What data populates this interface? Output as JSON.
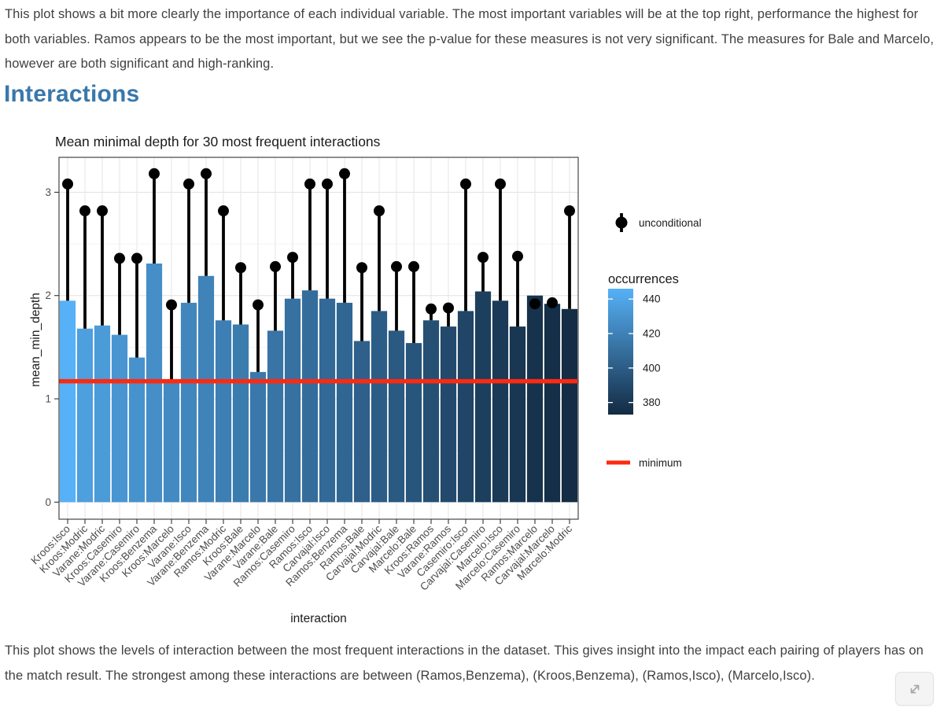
{
  "page": {
    "paragraph_top": "This plot shows a bit more clearly the importance of each individual variable. The most important variables will be at the top right, performance the highest for both variables. Ramos appears to be the most important, but we see the p-value for these measures is not very significant. The measures for Bale and Marcelo, however are both significant and high-ranking.",
    "heading": "Interactions",
    "paragraph_bottom": "This plot shows the levels of interaction between the most frequent interactions in the dataset. This gives insight into the impact each pairing of players has on the match result. The strongest among these interactions are between (Ramos,Benzema), (Kroos,Benzema), (Ramos,Isco), (Marcelo,Isco)."
  },
  "chart_data": {
    "type": "bar",
    "title": "Mean minimal depth for 30 most frequent interactions",
    "xlabel": "interaction",
    "ylabel": "mean_min_depth",
    "ylim": [
      0,
      3.35
    ],
    "yticks": [
      0,
      1,
      2,
      3
    ],
    "grid": true,
    "minimum_line": 1.17,
    "categories": [
      "Kroos:Isco",
      "Kroos:Modric",
      "Varane:Modric",
      "Kroos:Casemiro",
      "Varane:Casemiro",
      "Kroos:Benzema",
      "Kroos:Marcelo",
      "Varane:Isco",
      "Varane:Benzema",
      "Ramos:Modric",
      "Kroos:Bale",
      "Varane:Marcelo",
      "Varane:Bale",
      "Ramos:Casemiro",
      "Ramos:Isco",
      "Carvajal:Isco",
      "Ramos:Benzema",
      "Ramos:Bale",
      "Carvajal:Modric",
      "Carvajal:Bale",
      "Marcelo:Bale",
      "Kroos:Ramos",
      "Varane:Ramos",
      "Casemiro:Isco",
      "Carvajal:Casemiro",
      "Marcelo:Isco",
      "Marcelo:Casemiro",
      "Ramos:Marcelo",
      "Carvajal:Marcelo",
      "Marcelo:Modric"
    ],
    "series": [
      {
        "name": "mean_min_depth (bars)",
        "values": [
          1.95,
          1.68,
          1.71,
          1.62,
          1.4,
          2.31,
          1.17,
          1.93,
          2.19,
          1.76,
          1.72,
          1.26,
          1.66,
          1.97,
          2.05,
          1.97,
          1.93,
          1.56,
          1.85,
          1.66,
          1.54,
          1.76,
          1.7,
          1.85,
          2.04,
          1.95,
          1.7,
          2.0,
          1.92,
          1.87
        ]
      },
      {
        "name": "unconditional (dots)",
        "values": [
          3.08,
          2.82,
          2.82,
          2.36,
          2.36,
          3.18,
          1.91,
          3.08,
          3.18,
          2.82,
          2.27,
          1.91,
          2.28,
          2.37,
          3.08,
          3.08,
          3.18,
          2.27,
          2.82,
          2.28,
          2.28,
          1.87,
          1.88,
          3.08,
          2.37,
          3.08,
          2.38,
          1.92,
          1.93,
          2.82
        ]
      },
      {
        "name": "occurrences (color, estimated)",
        "values": [
          446,
          436,
          434,
          431,
          429,
          427,
          425,
          423,
          421,
          419,
          417,
          415,
          413,
          411,
          409,
          407,
          405,
          402,
          400,
          398,
          396,
          393,
          390,
          387,
          384,
          381,
          379,
          377,
          375,
          374
        ]
      }
    ],
    "legend": {
      "position": "right",
      "point_label": "unconditional",
      "gradient_title": "occurrences",
      "gradient_ticks": [
        440,
        420,
        400,
        380
      ],
      "gradient_domain": [
        373,
        446
      ],
      "line_label": "minimum"
    },
    "colors": {
      "bar_low": "#132B43",
      "bar_high": "#56B1F7",
      "minimum_line": "#FB2A10",
      "dot": "#000000",
      "grid_major": "#e4e4e4",
      "grid_minor": "#f0f0f0",
      "panel_border": "#454545",
      "tick_label": "#4d4d4d",
      "text": "#1a1a1a"
    }
  },
  "controls": {
    "resize_button": "resize-handle"
  }
}
